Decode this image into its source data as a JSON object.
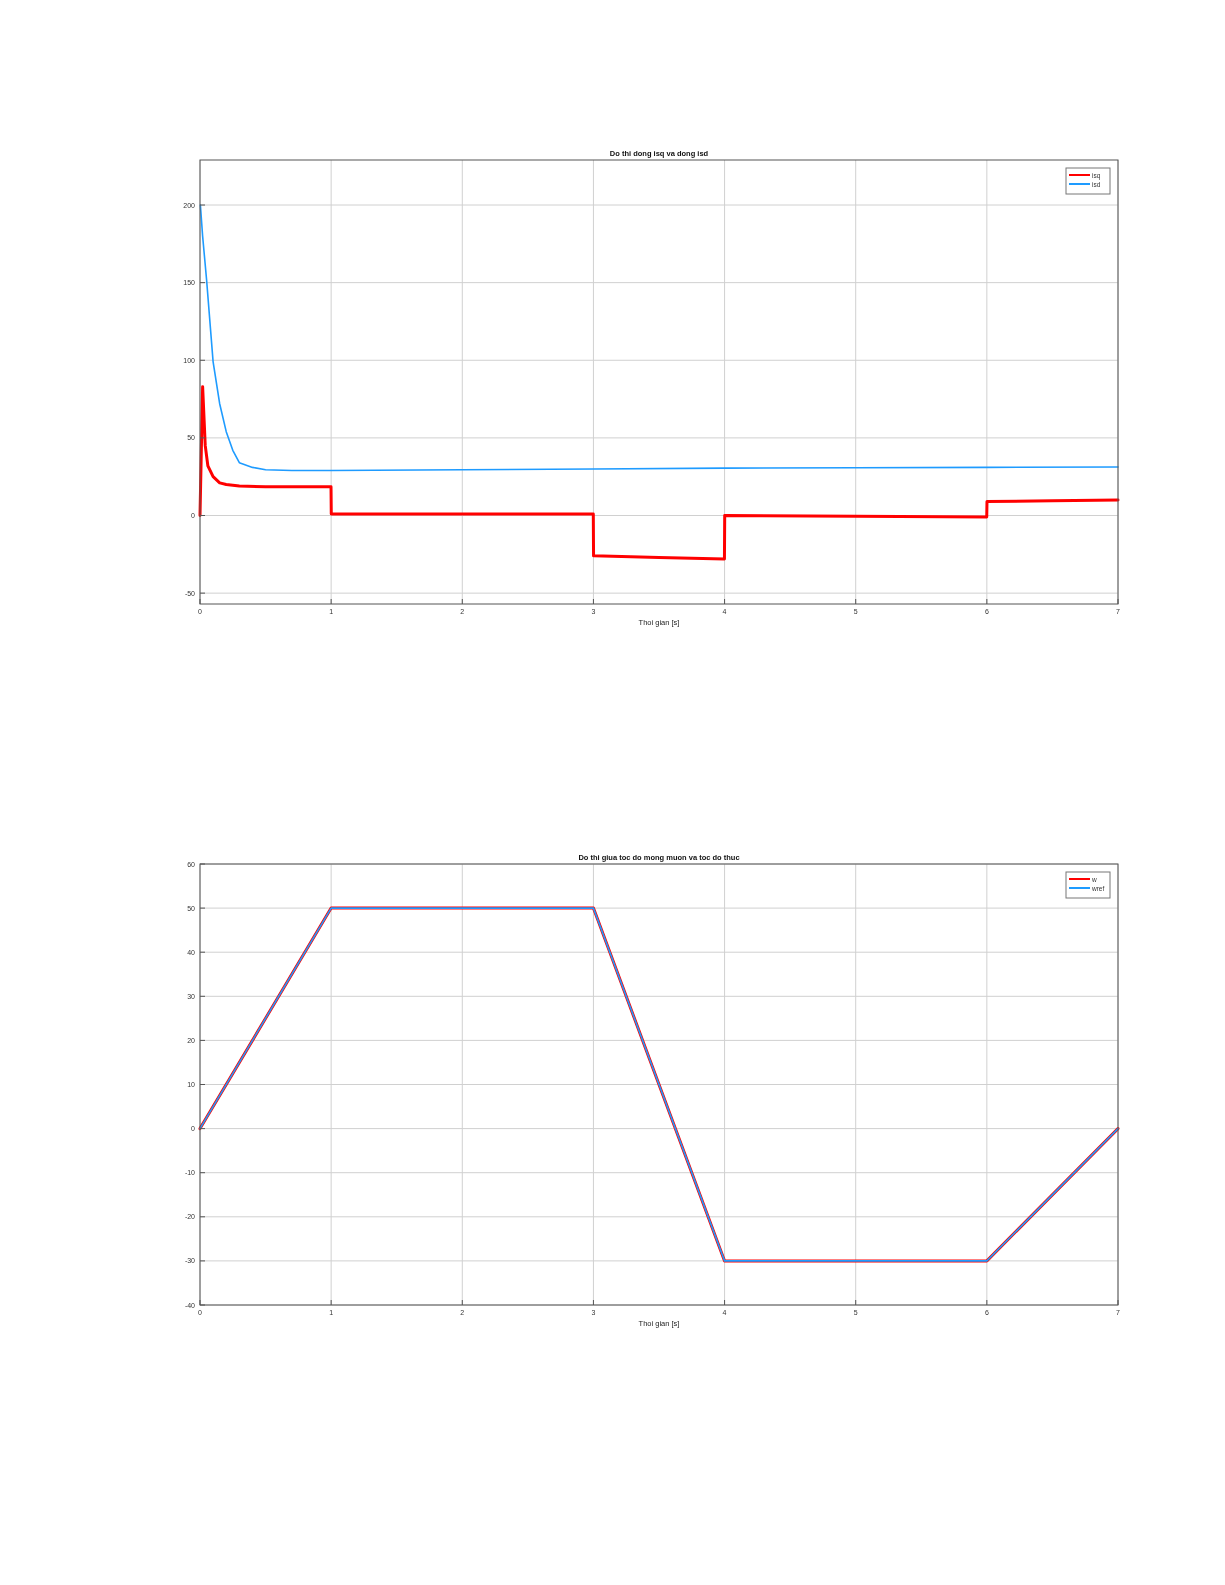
{
  "chart_data": [
    {
      "type": "line",
      "title": "Do thi dong isq va dong isd",
      "xlabel": "Thoi gian [s]",
      "xlim": [
        0,
        7
      ],
      "xticks": [
        0,
        1,
        2,
        3,
        4,
        5,
        6,
        7
      ],
      "ylim": [
        -57,
        229
      ],
      "yticks": [
        -50,
        0,
        50,
        100,
        150,
        200
      ],
      "grid": true,
      "legend": "top right",
      "series": [
        {
          "name": "isq",
          "color": "#ff0000",
          "x": [
            0,
            0.02,
            0.04,
            0.06,
            0.1,
            0.15,
            0.2,
            0.3,
            0.5,
            0.8,
            0.999,
            1.001,
            1.5,
            2,
            2.999,
            3.001,
            3.5,
            3.999,
            4.001,
            5,
            5.999,
            6.001,
            6.5,
            7
          ],
          "values": [
            0,
            83,
            45,
            32,
            25,
            21,
            20,
            19,
            18.5,
            18.5,
            18.5,
            1,
            1,
            1,
            1,
            -26,
            -27,
            -28,
            0,
            -0.5,
            -1,
            9,
            9.5,
            10
          ]
        },
        {
          "name": "isd",
          "color": "#1e9bff",
          "x": [
            0.003,
            0.02,
            0.05,
            0.1,
            0.15,
            0.2,
            0.25,
            0.3,
            0.4,
            0.5,
            0.7,
            1,
            2,
            3,
            4,
            5,
            6,
            7
          ],
          "values": [
            200,
            180,
            152,
            99,
            72,
            54,
            42,
            34,
            31,
            29.5,
            29,
            29,
            29.5,
            30,
            30.5,
            30.8,
            31,
            31.2
          ]
        }
      ]
    },
    {
      "type": "line",
      "title": "Do thi giua toc do mong muon va toc do thuc",
      "xlabel": "Thoi gian [s]",
      "xlim": [
        0,
        7
      ],
      "xticks": [
        0,
        1,
        2,
        3,
        4,
        5,
        6,
        7
      ],
      "ylim": [
        -40,
        60
      ],
      "yticks": [
        -40,
        -30,
        -20,
        -10,
        0,
        10,
        20,
        30,
        40,
        50,
        60
      ],
      "grid": true,
      "legend": "top right",
      "series": [
        {
          "name": "w",
          "color": "#ff0000",
          "x": [
            0,
            1,
            3,
            4,
            6,
            7
          ],
          "values": [
            0,
            50,
            50,
            -30,
            -30,
            0
          ]
        },
        {
          "name": "wref",
          "color": "#1e9bff",
          "x": [
            0,
            1,
            3,
            4,
            6,
            7
          ],
          "values": [
            0,
            50,
            50,
            -30,
            -30,
            0
          ]
        }
      ]
    }
  ]
}
